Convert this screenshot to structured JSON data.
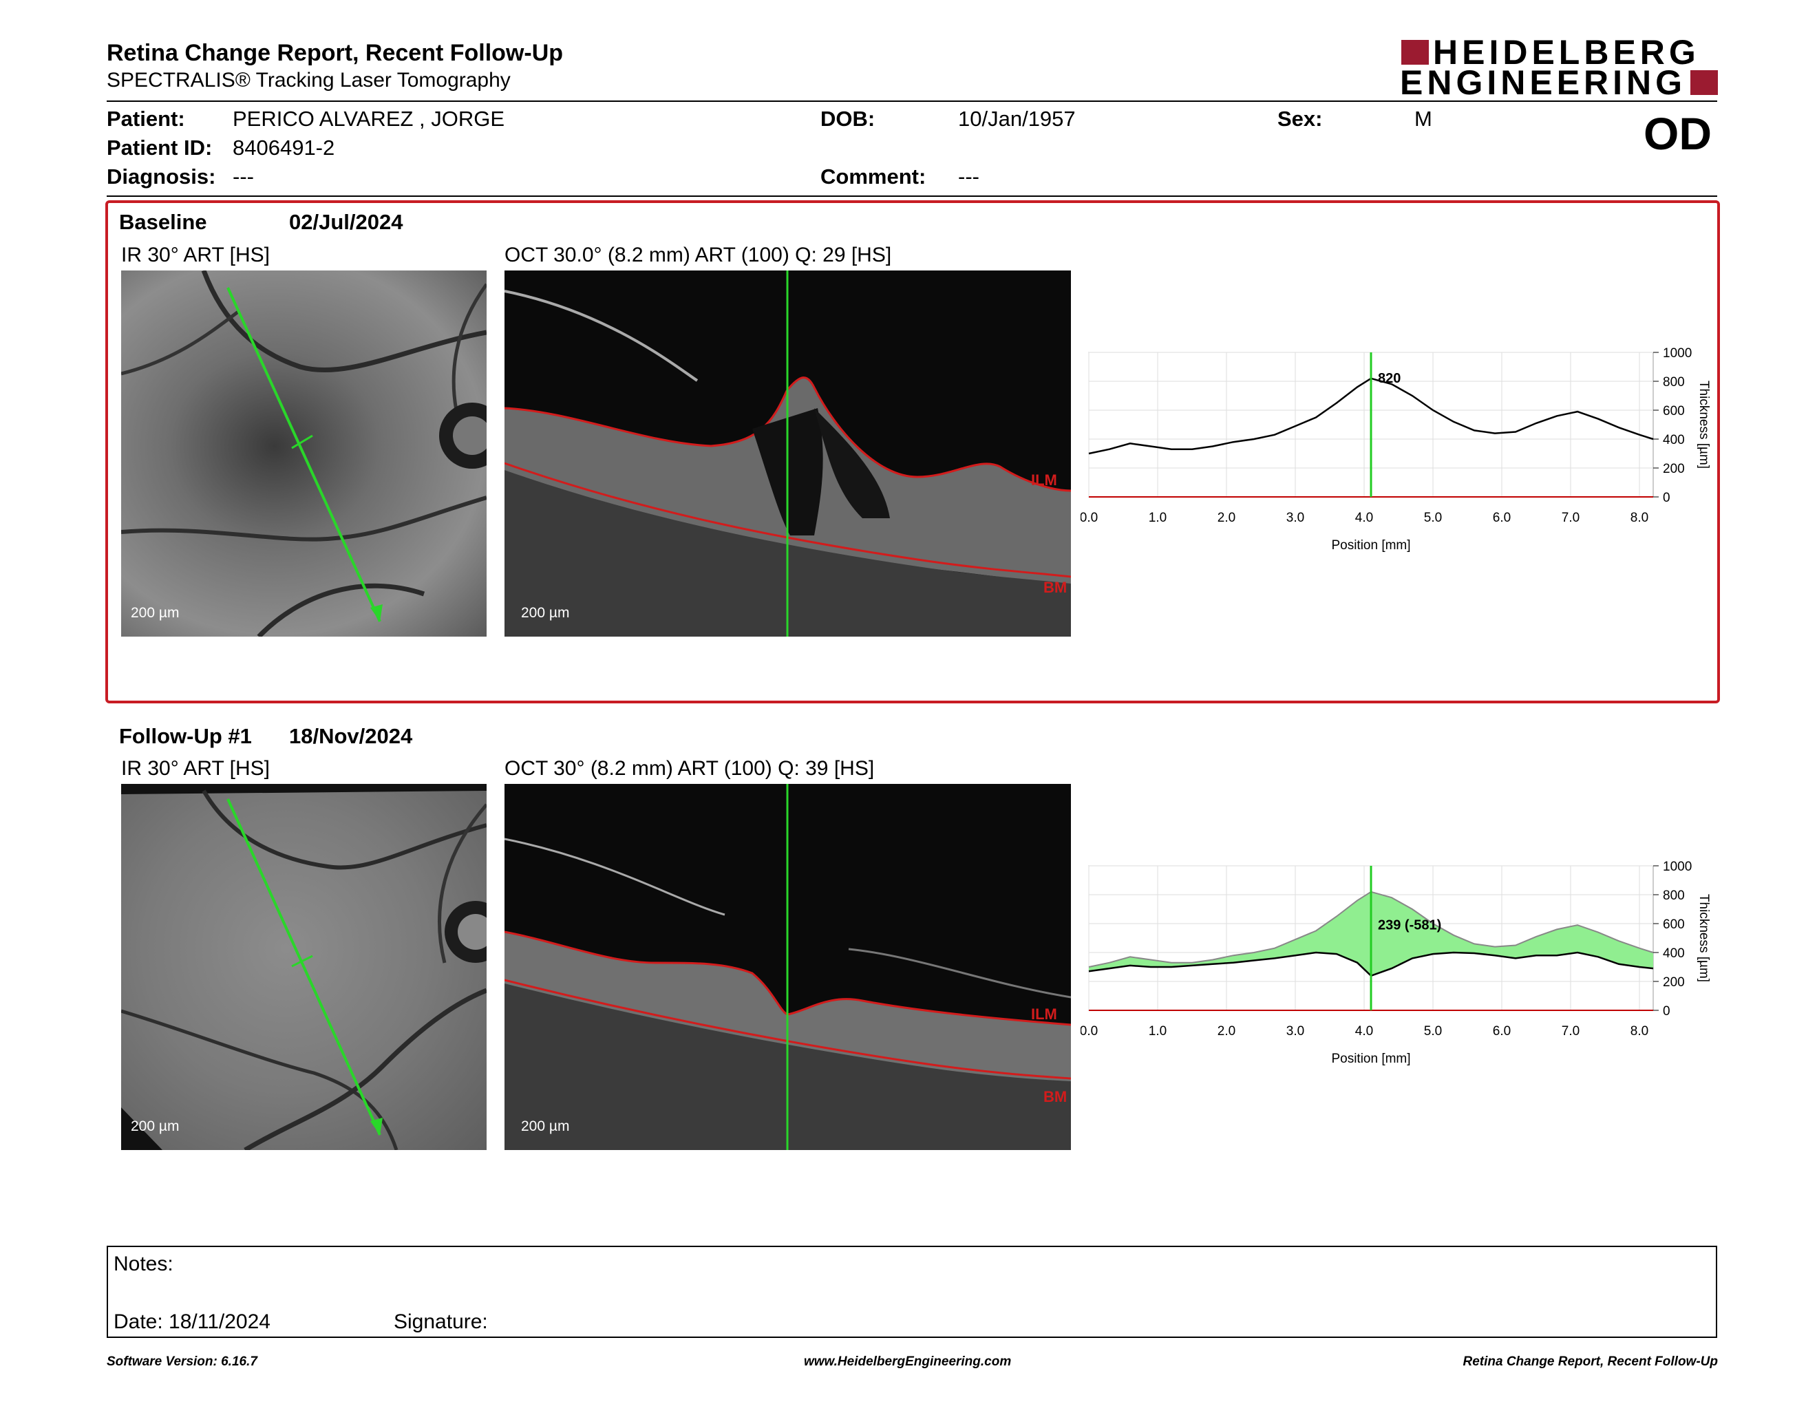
{
  "report": {
    "title": "Retina Change Report, Recent Follow-Up",
    "subtitle": "SPECTRALIS® Tracking Laser Tomography",
    "eye": "OD",
    "logo_line1": "HEIDELBERG",
    "logo_line2": "ENGINEERING"
  },
  "patient": {
    "name_label": "Patient:",
    "name": "PERICO ALVAREZ , JORGE",
    "id_label": "Patient ID:",
    "id": "8406491-2",
    "diagnosis_label": "Diagnosis:",
    "diagnosis": "---",
    "dob_label": "DOB:",
    "dob": "10/Jan/1957",
    "comment_label": "Comment:",
    "comment": "---",
    "sex_label": "Sex:",
    "sex": "M"
  },
  "baseline": {
    "label": "Baseline",
    "date": "02/Jul/2024",
    "ir_title": "IR 30° ART [HS]",
    "oct_title": "OCT 30.0° (8.2 mm) ART (100) Q: 29 [HS]",
    "scale": "200 µm",
    "ilm": "ILM",
    "bm": "BM"
  },
  "followup": {
    "label": "Follow-Up #1",
    "date": "18/Nov/2024",
    "ir_title": "IR 30° ART [HS]",
    "oct_title": "OCT 30° (8.2 mm) ART (100) Q: 39 [HS]",
    "scale": "200 µm",
    "ilm": "ILM",
    "bm": "BM"
  },
  "chart_data": [
    {
      "type": "line",
      "xlabel": "Position [mm]",
      "ylabel": "Thickness [µm]",
      "xlim": [
        0,
        8.2
      ],
      "ylim": [
        0,
        1000
      ],
      "xticks": [
        "0.0",
        "1.0",
        "2.0",
        "3.0",
        "4.0",
        "5.0",
        "6.0",
        "7.0",
        "8.0"
      ],
      "yticks": [
        "0",
        "200",
        "400",
        "600",
        "800",
        "1000"
      ],
      "cursor_x": 4.1,
      "cursor_label": "820",
      "colors": {
        "line": "#000000",
        "cursor": "#22cc22",
        "baseline": "#c00000"
      },
      "series": [
        {
          "x": [
            0,
            0.3,
            0.6,
            0.9,
            1.2,
            1.5,
            1.8,
            2.1,
            2.4,
            2.7,
            3.0,
            3.3,
            3.6,
            3.9,
            4.1,
            4.4,
            4.7,
            5.0,
            5.3,
            5.6,
            5.9,
            6.2,
            6.5,
            6.8,
            7.1,
            7.4,
            7.7,
            8.0,
            8.2
          ],
          "values": [
            300,
            330,
            370,
            350,
            330,
            330,
            350,
            380,
            400,
            430,
            490,
            550,
            650,
            760,
            820,
            780,
            700,
            600,
            520,
            460,
            440,
            450,
            510,
            560,
            590,
            540,
            480,
            430,
            400
          ]
        }
      ]
    },
    {
      "type": "area",
      "xlabel": "Position [mm]",
      "ylabel": "Thickness [µm]",
      "xlim": [
        0,
        8.2
      ],
      "ylim": [
        0,
        1000
      ],
      "xticks": [
        "0.0",
        "1.0",
        "2.0",
        "3.0",
        "4.0",
        "5.0",
        "6.0",
        "7.0",
        "8.0"
      ],
      "yticks": [
        "0",
        "200",
        "400",
        "600",
        "800",
        "1000"
      ],
      "cursor_x": 4.1,
      "cursor_label": "239 (-581)",
      "colors": {
        "fill": "#90ee90",
        "line": "#000000",
        "cursor": "#22cc22",
        "baseline": "#c00000"
      },
      "series": [
        {
          "x": [
            0,
            0.3,
            0.6,
            0.9,
            1.2,
            1.5,
            1.8,
            2.1,
            2.4,
            2.7,
            3.0,
            3.3,
            3.6,
            3.9,
            4.1,
            4.4,
            4.7,
            5.0,
            5.3,
            5.6,
            5.9,
            6.2,
            6.5,
            6.8,
            7.1,
            7.4,
            7.7,
            8.0,
            8.2
          ],
          "values": [
            300,
            330,
            370,
            350,
            330,
            330,
            350,
            380,
            400,
            430,
            490,
            550,
            650,
            760,
            820,
            780,
            700,
            600,
            520,
            460,
            440,
            450,
            510,
            560,
            590,
            540,
            480,
            430,
            400
          ]
        },
        {
          "x": [
            0,
            0.3,
            0.6,
            0.9,
            1.2,
            1.5,
            1.8,
            2.1,
            2.4,
            2.7,
            3.0,
            3.3,
            3.6,
            3.9,
            4.1,
            4.4,
            4.7,
            5.0,
            5.3,
            5.6,
            5.9,
            6.2,
            6.5,
            6.8,
            7.1,
            7.4,
            7.7,
            8.0,
            8.2
          ],
          "values": [
            270,
            290,
            310,
            300,
            300,
            310,
            320,
            330,
            345,
            360,
            380,
            400,
            390,
            330,
            239,
            290,
            360,
            390,
            400,
            395,
            380,
            360,
            380,
            380,
            400,
            370,
            320,
            300,
            290
          ]
        }
      ]
    }
  ],
  "notes": {
    "label": "Notes:",
    "date_label": "Date: 18/11/2024",
    "signature_label": "Signature:"
  },
  "footer": {
    "left": "Software Version: 6.16.7",
    "center": "www.HeidelbergEngineering.com",
    "right": "Retina Change Report, Recent Follow-Up"
  }
}
